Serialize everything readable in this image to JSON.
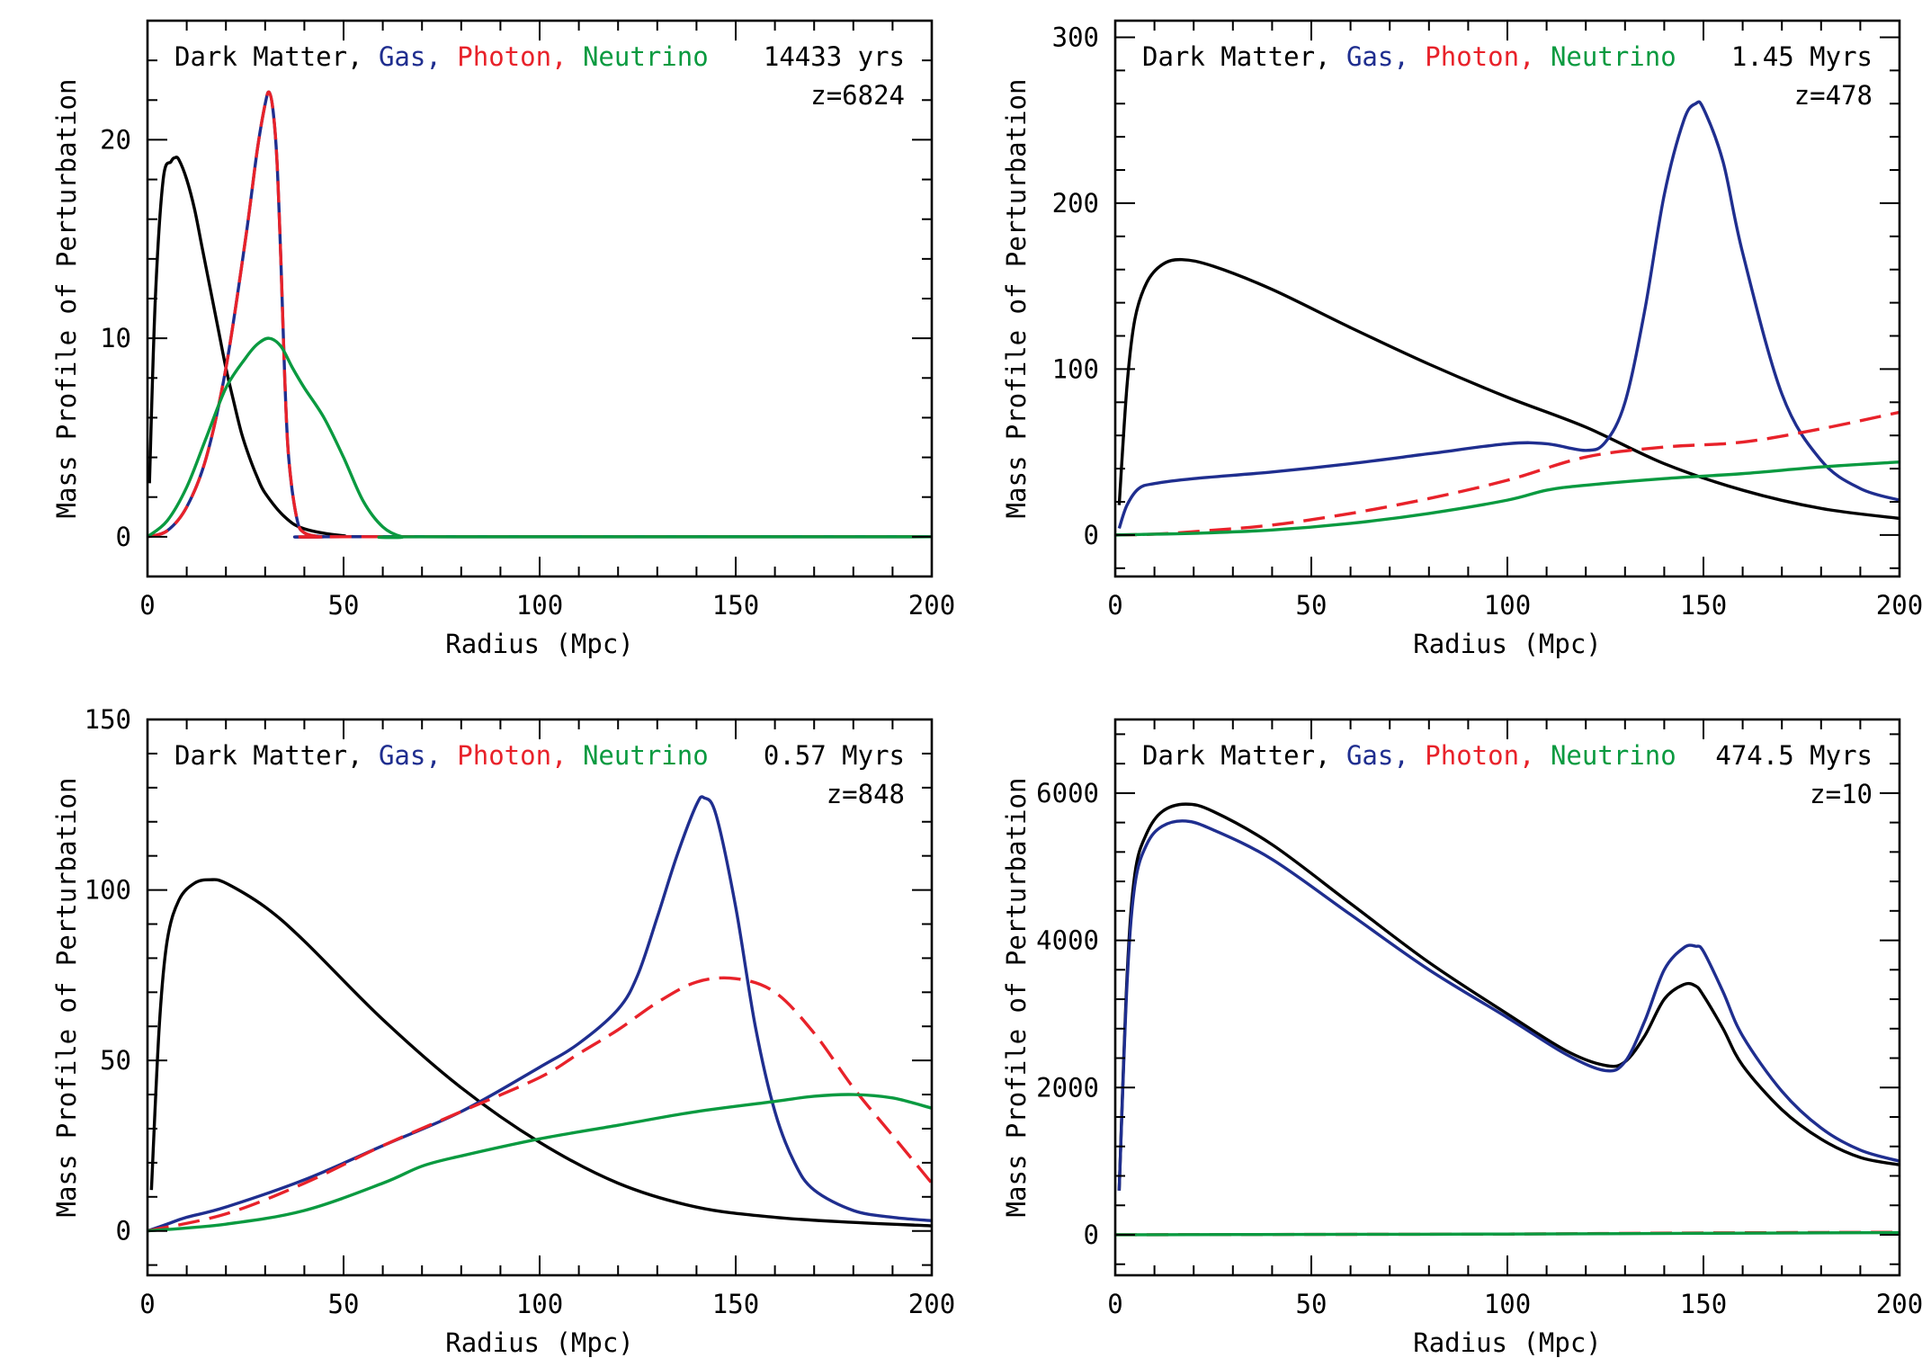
{
  "figure": {
    "description_label": "Four-panel mass profile of perturbation figure"
  },
  "chart_data": [
    {
      "type": "line",
      "panel": "top-left",
      "xlabel": "Radius (Mpc)",
      "ylabel": "Mass Profile of Perturbation",
      "xlim": [
        0,
        200
      ],
      "ylim": [
        -2,
        26
      ],
      "xticks": [
        0,
        50,
        100,
        150,
        200
      ],
      "yticks": [
        0,
        10,
        20
      ],
      "legend": [
        "Dark Matter,",
        "Gas,",
        "Photon,",
        "Neutrino"
      ],
      "time_label": "14433 yrs",
      "z_label": "z=6824",
      "series": [
        {
          "name": "Dark Matter",
          "color": "#000000",
          "dash": "solid",
          "x": [
            0.5,
            2,
            4,
            6,
            7,
            8,
            10,
            12,
            14,
            16,
            18,
            20,
            22,
            24,
            26,
            28,
            30,
            35,
            40,
            50,
            60,
            200
          ],
          "y": [
            2.7,
            12,
            18,
            18.9,
            19.1,
            19,
            18,
            16.5,
            14.5,
            12.5,
            10.5,
            8.5,
            6.8,
            5.2,
            4,
            3,
            2.2,
            1,
            0.4,
            0.05,
            0,
            0
          ]
        },
        {
          "name": "Gas",
          "color": "#1f2e8f",
          "dash": "solid",
          "x": [
            0,
            5,
            10,
            15,
            20,
            25,
            28,
            30,
            31,
            32,
            33,
            34,
            35,
            36,
            38,
            40,
            45,
            50,
            200
          ],
          "y": [
            0,
            0.3,
            1.5,
            4,
            8.5,
            15,
            19.5,
            21.8,
            22.4,
            21.5,
            19,
            14,
            8,
            4,
            1,
            0.2,
            0,
            0,
            0
          ]
        },
        {
          "name": "Photon",
          "color": "#e8222a",
          "dash": "long-dash",
          "x": [
            0,
            5,
            10,
            15,
            20,
            25,
            28,
            30,
            31,
            32,
            33,
            34,
            35,
            36,
            38,
            40,
            45,
            50,
            200
          ],
          "y": [
            0,
            0.3,
            1.5,
            4,
            8.5,
            15,
            19.5,
            21.8,
            22.4,
            21.5,
            19,
            14,
            8,
            4,
            1,
            0.2,
            0,
            0,
            0
          ]
        },
        {
          "name": "Neutrino",
          "color": "#0a9a40",
          "dash": "solid",
          "x": [
            0,
            5,
            10,
            15,
            20,
            25,
            28,
            31,
            34,
            37,
            40,
            45,
            50,
            55,
            60,
            65,
            70,
            200
          ],
          "y": [
            0,
            0.8,
            2.5,
            5,
            7.5,
            9,
            9.7,
            10,
            9.6,
            8.5,
            7.5,
            6,
            4,
            1.8,
            0.5,
            0,
            0,
            0
          ]
        }
      ]
    },
    {
      "type": "line",
      "panel": "top-right",
      "xlabel": "Radius (Mpc)",
      "ylabel": "Mass Profile of Perturbation",
      "xlim": [
        0,
        200
      ],
      "ylim": [
        -25,
        310
      ],
      "xticks": [
        0,
        50,
        100,
        150,
        200
      ],
      "yticks": [
        0,
        100,
        200,
        300
      ],
      "legend": [
        "Dark Matter,",
        "Gas,",
        "Photon,",
        "Neutrino"
      ],
      "time_label": "1.45 Myrs",
      "z_label": "z=478",
      "series": [
        {
          "name": "Dark Matter",
          "color": "#000000",
          "dash": "solid",
          "x": [
            1,
            3,
            5,
            8,
            12,
            17,
            25,
            40,
            60,
            80,
            100,
            120,
            140,
            160,
            180,
            200
          ],
          "y": [
            18,
            90,
            130,
            152,
            163,
            166,
            162,
            148,
            125,
            103,
            83,
            65,
            43,
            27,
            16,
            10
          ]
        },
        {
          "name": "Gas",
          "color": "#1f2e8f",
          "dash": "solid",
          "x": [
            1,
            3,
            6,
            10,
            20,
            40,
            60,
            80,
            100,
            110,
            120,
            125,
            130,
            135,
            140,
            145,
            148,
            150,
            155,
            160,
            170,
            180,
            190,
            200
          ],
          "y": [
            4,
            18,
            28,
            31,
            34,
            38,
            43,
            49,
            55,
            55,
            51,
            56,
            80,
            135,
            205,
            250,
            260,
            257,
            225,
            170,
            85,
            45,
            28,
            21
          ]
        },
        {
          "name": "Photon",
          "color": "#e8222a",
          "dash": "long-dash",
          "x": [
            0,
            10,
            20,
            40,
            60,
            80,
            100,
            120,
            140,
            160,
            180,
            200
          ],
          "y": [
            0,
            0.5,
            2,
            6,
            13,
            22,
            33,
            47,
            53,
            56,
            64,
            74
          ]
        },
        {
          "name": "Neutrino",
          "color": "#0a9a40",
          "dash": "solid",
          "x": [
            0,
            10,
            20,
            40,
            60,
            80,
            100,
            110,
            120,
            140,
            160,
            180,
            200
          ],
          "y": [
            0,
            0.5,
            1,
            3,
            7,
            13,
            21,
            27,
            30,
            34,
            37,
            41,
            44
          ]
        }
      ]
    },
    {
      "type": "line",
      "panel": "bottom-left",
      "xlabel": "Radius (Mpc)",
      "ylabel": "Mass Profile of Perturbation",
      "xlim": [
        0,
        200
      ],
      "ylim": [
        -13,
        150
      ],
      "xticks": [
        0,
        50,
        100,
        150,
        200
      ],
      "yticks": [
        0,
        50,
        100,
        150
      ],
      "legend": [
        "Dark Matter,",
        "Gas,",
        "Photon,",
        "Neutrino"
      ],
      "time_label": "0.57 Myrs",
      "z_label": "z=848",
      "series": [
        {
          "name": "Dark Matter",
          "color": "#000000",
          "dash": "solid",
          "x": [
            1,
            3,
            5,
            8,
            12,
            16,
            20,
            30,
            40,
            60,
            80,
            100,
            120,
            140,
            160,
            180,
            200
          ],
          "y": [
            12,
            60,
            85,
            97,
            102,
            103,
            102,
            95,
            85,
            62,
            42,
            26,
            14,
            7,
            4,
            2.5,
            1.5
          ]
        },
        {
          "name": "Gas",
          "color": "#1f2e8f",
          "dash": "solid",
          "x": [
            0,
            5,
            10,
            20,
            40,
            60,
            80,
            100,
            110,
            120,
            125,
            130,
            135,
            140,
            142,
            145,
            150,
            155,
            160,
            165,
            170,
            180,
            190,
            200
          ],
          "y": [
            0,
            2,
            4,
            7,
            15,
            25,
            35,
            48,
            55,
            65,
            75,
            92,
            110,
            125,
            127,
            122,
            95,
            60,
            35,
            20,
            12,
            6,
            4,
            3
          ]
        },
        {
          "name": "Photon",
          "color": "#e8222a",
          "dash": "long-dash",
          "x": [
            0,
            20,
            40,
            60,
            80,
            100,
            110,
            120,
            130,
            140,
            150,
            160,
            170,
            180,
            190,
            200
          ],
          "y": [
            0,
            5,
            14,
            25,
            35,
            45,
            52,
            59,
            67,
            73,
            74,
            70,
            58,
            42,
            28,
            14
          ]
        },
        {
          "name": "Neutrino",
          "color": "#0a9a40",
          "dash": "solid",
          "x": [
            0,
            20,
            40,
            60,
            70,
            80,
            100,
            120,
            140,
            160,
            170,
            180,
            190,
            200
          ],
          "y": [
            0,
            2,
            6,
            14,
            19,
            22,
            27,
            31,
            35,
            38,
            39.5,
            40,
            39,
            36
          ]
        }
      ]
    },
    {
      "type": "line",
      "panel": "bottom-right",
      "xlabel": "Radius (Mpc)",
      "ylabel": "Mass Profile of Perturbation",
      "xlim": [
        0,
        200
      ],
      "ylim": [
        -550,
        7000
      ],
      "xticks": [
        0,
        50,
        100,
        150,
        200
      ],
      "yticks": [
        0,
        2000,
        4000,
        6000
      ],
      "legend": [
        "Dark Matter,",
        "Gas,",
        "Photon,",
        "Neutrino"
      ],
      "time_label": "474.5 Myrs",
      "z_label": "z=10",
      "series": [
        {
          "name": "Dark Matter",
          "color": "#000000",
          "dash": "solid",
          "x": [
            1,
            3,
            5,
            8,
            12,
            18,
            25,
            40,
            60,
            80,
            100,
            115,
            125,
            130,
            135,
            140,
            145,
            148,
            150,
            155,
            160,
            170,
            180,
            190,
            200
          ],
          "y": [
            600,
            3500,
            4900,
            5450,
            5750,
            5850,
            5750,
            5300,
            4500,
            3700,
            3000,
            2500,
            2300,
            2350,
            2700,
            3200,
            3400,
            3380,
            3250,
            2800,
            2300,
            1700,
            1300,
            1050,
            950
          ]
        },
        {
          "name": "Gas",
          "color": "#1f2e8f",
          "dash": "solid",
          "x": [
            1,
            3,
            5,
            8,
            12,
            18,
            25,
            40,
            60,
            80,
            100,
            115,
            125,
            130,
            135,
            140,
            145,
            148,
            150,
            155,
            160,
            170,
            180,
            190,
            200
          ],
          "y": [
            600,
            3400,
            4750,
            5300,
            5550,
            5620,
            5500,
            5100,
            4350,
            3600,
            2950,
            2450,
            2230,
            2350,
            2900,
            3600,
            3900,
            3920,
            3850,
            3300,
            2700,
            1950,
            1450,
            1150,
            1000
          ]
        },
        {
          "name": "Photon",
          "color": "#e8222a",
          "dash": "long-dash",
          "x": [
            0,
            50,
            100,
            150,
            200
          ],
          "y": [
            0,
            5,
            10,
            25,
            35
          ]
        },
        {
          "name": "Neutrino",
          "color": "#0a9a40",
          "dash": "solid",
          "x": [
            0,
            50,
            100,
            150,
            200
          ],
          "y": [
            0,
            5,
            10,
            20,
            30
          ]
        }
      ]
    }
  ]
}
